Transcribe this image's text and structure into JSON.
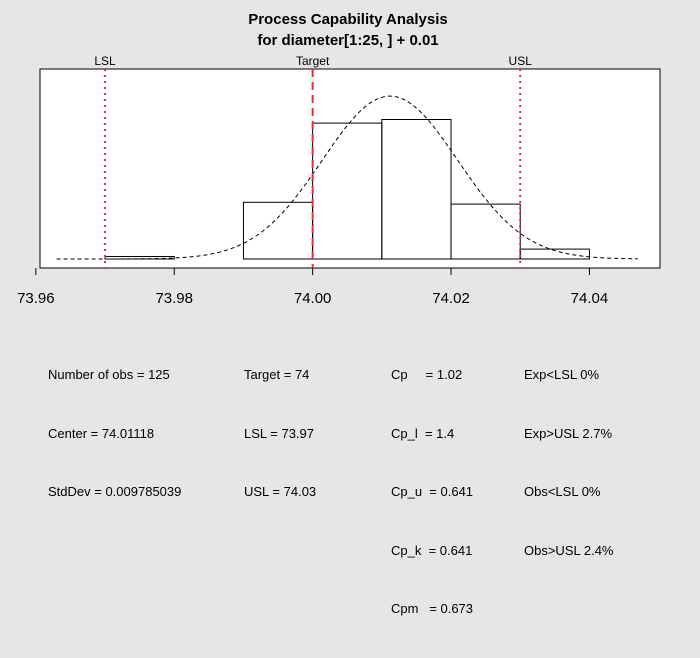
{
  "chart_data": {
    "type": "bar",
    "title": "Process Capability Analysis",
    "subtitle": "for diameter[1:25, ] + 0.01",
    "xlabel": "",
    "ylabel": "",
    "xlim": [
      73.9606,
      74.0502
    ],
    "ylim": [
      0,
      1
    ],
    "x_ticks": [
      73.96,
      73.98,
      74.0,
      74.02,
      74.04
    ],
    "x_tick_labels": [
      "73.96",
      "73.98",
      "74.00",
      "74.02",
      "74.04"
    ],
    "histogram": {
      "bin_edges": [
        73.97,
        73.98,
        73.99,
        74.0,
        74.01,
        74.02,
        74.03,
        74.04
      ],
      "heights": [
        0.014,
        0.0,
        0.315,
        0.755,
        0.775,
        0.305,
        0.055
      ]
    },
    "density_curve": {
      "mean": 74.01118,
      "sd": 0.009785039,
      "peak_height": 0.905,
      "x_range": [
        73.963,
        74.047
      ]
    },
    "reference_lines": [
      {
        "name": "LSL",
        "value": 73.97,
        "color": "#e0303a",
        "style": "dotted"
      },
      {
        "name": "Target",
        "value": 74.0,
        "color": "#e0303a",
        "style": "dashed"
      },
      {
        "name": "USL",
        "value": 74.03,
        "color": "#e0303a",
        "style": "dotted"
      }
    ],
    "grid": false,
    "legend": "none"
  },
  "stats": {
    "col1": [
      "Number of obs = 125",
      "Center = 74.01118",
      "StdDev = 0.009785039"
    ],
    "col2": [
      "Target = 74",
      "LSL = 73.97",
      "USL = 74.03"
    ],
    "col3": [
      "Cp     = 1.02",
      "Cp_l  = 1.4",
      "Cp_u  = 0.641",
      "Cp_k  = 0.641",
      "Cpm   = 0.673"
    ],
    "col4": [
      "Exp<LSL 0%",
      "Exp>USL 2.7%",
      "Obs<LSL 0%",
      "Obs>USL 2.4%"
    ]
  }
}
